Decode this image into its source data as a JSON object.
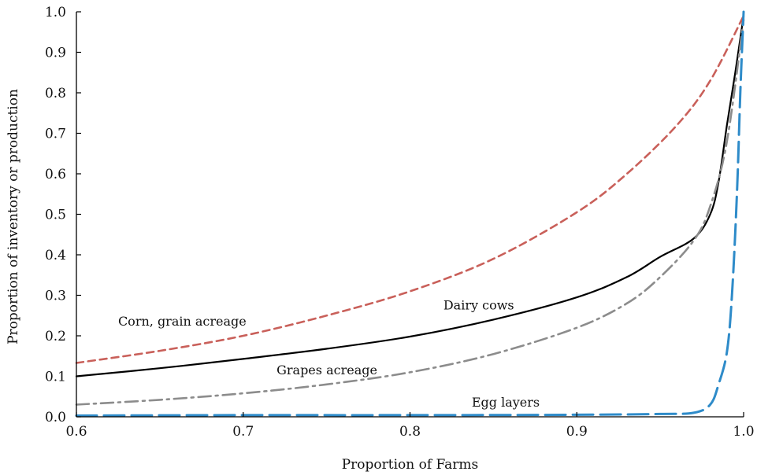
{
  "chart_data": {
    "type": "line",
    "xlabel": "Proportion of Farms",
    "ylabel": "Proportion of inventory or production",
    "xlim": [
      0.6,
      1.0
    ],
    "ylim": [
      0.0,
      1.0
    ],
    "xticks": [
      0.6,
      0.7,
      0.8,
      0.9,
      1.0
    ],
    "yticks": [
      0.0,
      0.1,
      0.2,
      0.3,
      0.4,
      0.5,
      0.6,
      0.7,
      0.8,
      0.9,
      1.0
    ],
    "xtick_labels": [
      "0.6",
      "0.7",
      "0.8",
      "0.9",
      "1.0"
    ],
    "ytick_labels": [
      "0.0",
      "0.1",
      "0.2",
      "0.3",
      "0.4",
      "0.5",
      "0.6",
      "0.7",
      "0.8",
      "0.9",
      "1.0"
    ],
    "grid": false,
    "legend": "none",
    "series": [
      {
        "name": "Corn, grain acreage",
        "color": "#c9605a",
        "style": "dashed",
        "x": [
          0.6,
          0.65,
          0.7,
          0.75,
          0.8,
          0.85,
          0.9,
          0.93,
          0.96,
          0.98,
          1.0
        ],
        "y": [
          0.133,
          0.163,
          0.2,
          0.25,
          0.31,
          0.39,
          0.505,
          0.6,
          0.72,
          0.83,
          0.99
        ]
      },
      {
        "name": "Dairy cows",
        "color": "#000000",
        "style": "solid",
        "x": [
          0.6,
          0.65,
          0.7,
          0.75,
          0.8,
          0.85,
          0.9,
          0.93,
          0.95,
          0.97,
          0.98,
          0.985,
          0.99,
          0.995,
          1.0
        ],
        "y": [
          0.1,
          0.12,
          0.143,
          0.168,
          0.198,
          0.24,
          0.295,
          0.345,
          0.395,
          0.44,
          0.5,
          0.58,
          0.72,
          0.85,
          0.99
        ]
      },
      {
        "name": "Grapes acreage",
        "color": "#8c8c8c",
        "style": "dashdot",
        "x": [
          0.6,
          0.65,
          0.7,
          0.75,
          0.8,
          0.85,
          0.9,
          0.93,
          0.95,
          0.97,
          0.98,
          0.99,
          1.0
        ],
        "y": [
          0.03,
          0.042,
          0.058,
          0.08,
          0.11,
          0.155,
          0.22,
          0.28,
          0.345,
          0.435,
          0.52,
          0.68,
          0.98
        ]
      },
      {
        "name": "Egg layers",
        "color": "#2e8bc9",
        "style": "longdash",
        "x": [
          0.6,
          0.7,
          0.8,
          0.9,
          0.95,
          0.97,
          0.98,
          0.985,
          0.99,
          0.993,
          0.996,
          0.998,
          1.0
        ],
        "y": [
          0.003,
          0.004,
          0.004,
          0.005,
          0.007,
          0.01,
          0.03,
          0.08,
          0.16,
          0.3,
          0.55,
          0.8,
          1.0
        ]
      }
    ],
    "annotations": [
      {
        "text": "Corn, grain acreage",
        "x": 0.625,
        "y": 0.225
      },
      {
        "text": "Dairy cows",
        "x": 0.82,
        "y": 0.265
      },
      {
        "text": "Grapes acreage",
        "x": 0.72,
        "y": 0.105
      },
      {
        "text": "Egg layers",
        "x": 0.837,
        "y": 0.025
      }
    ]
  }
}
